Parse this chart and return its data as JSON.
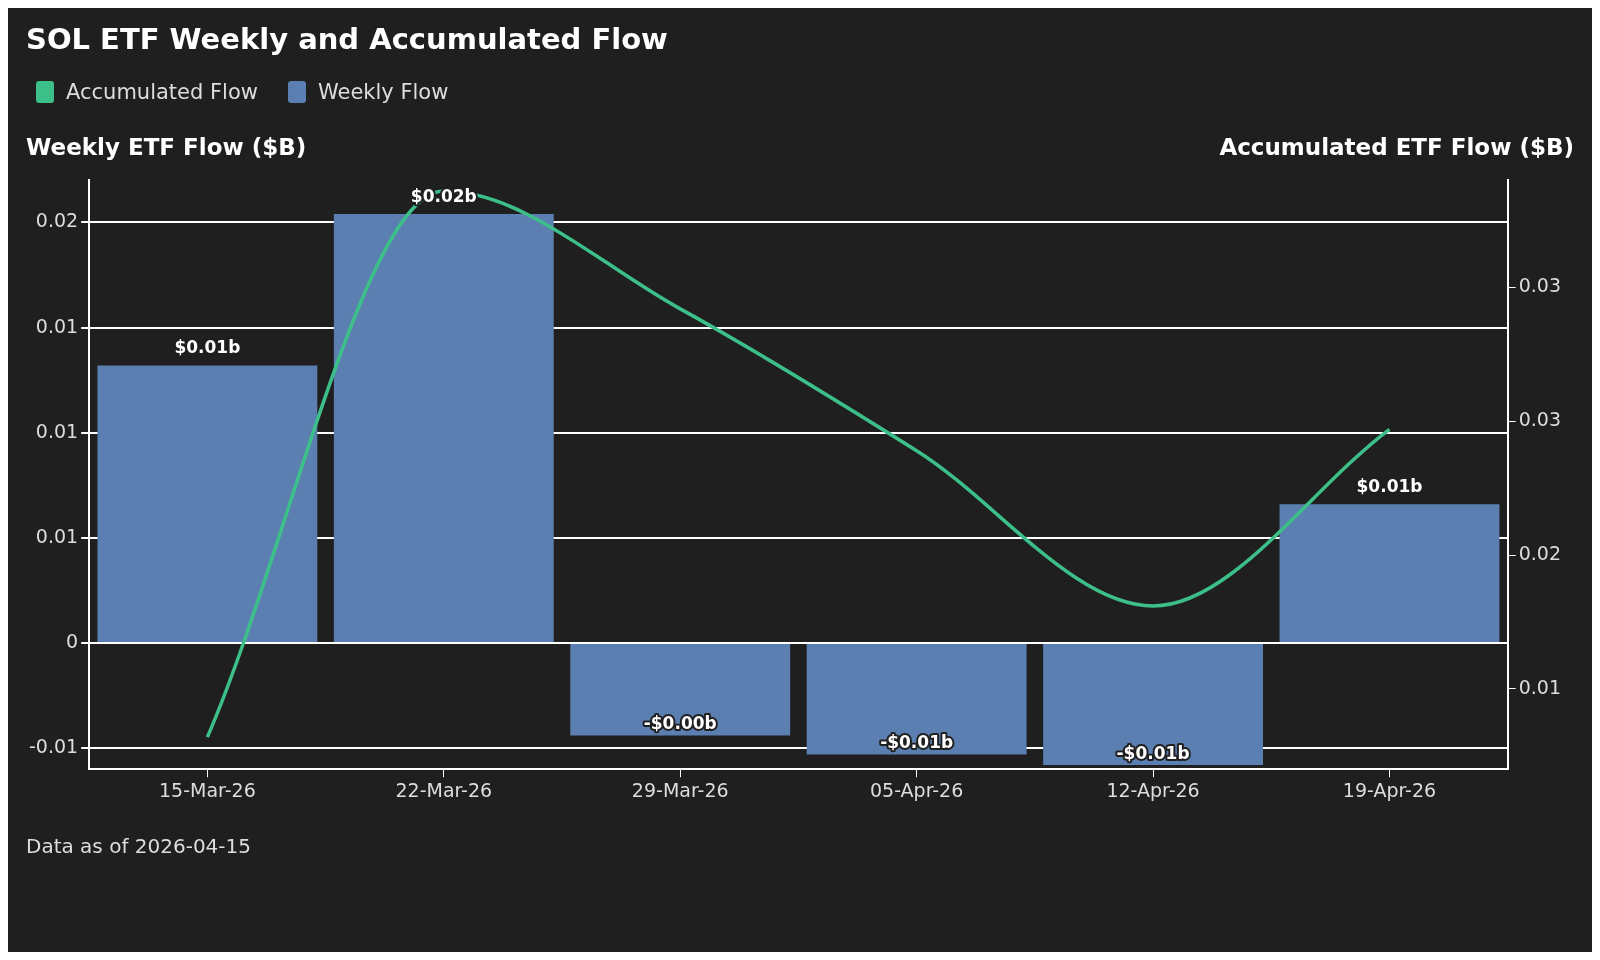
{
  "chart_data": {
    "type": "bar",
    "title": "SOL ETF Weekly and Accumulated Flow",
    "ylabel": "Weekly ETF Flow ($B)",
    "y2label": "Accumulated ETF Flow ($B)",
    "categories": [
      "15-Mar-26",
      "22-Mar-26",
      "29-Mar-26",
      "05-Apr-26",
      "12-Apr-26",
      "19-Apr-26"
    ],
    "series": [
      {
        "name": "Accumulated Flow",
        "type": "line",
        "axis": "y2",
        "color": "#3dbf8a",
        "values": [
          0.0132,
          0.0336,
          0.0292,
          0.0239,
          0.0181,
          0.0247
        ]
      },
      {
        "name": "Weekly Flow",
        "color": "#5b7fb0",
        "values": [
          0.0132,
          0.0204,
          -0.0044,
          -0.0053,
          -0.0058,
          0.0066
        ],
        "value_labels": [
          "$0.01b",
          "$0.02b",
          "-$0.00b",
          "-$0.01b",
          "-$0.01b",
          "$0.01b"
        ]
      }
    ],
    "ylim": [
      -0.006,
      0.022
    ],
    "yticks": [
      {
        "value": -0.005,
        "label": "-0.01"
      },
      0,
      {
        "value": 0.005,
        "label": "0.01"
      },
      {
        "value": 0.01,
        "label": "0.01"
      },
      {
        "value": 0.015,
        "label": "0.01"
      },
      {
        "value": 0.02,
        "label": "0.02"
      }
    ],
    "y2lim": [
      0.012,
      0.034
    ],
    "y2ticks": [
      {
        "value": 0.015,
        "label": "0.01"
      },
      {
        "value": 0.02,
        "label": "0.02"
      },
      {
        "value": 0.025,
        "label": "0.03"
      },
      {
        "value": 0.03,
        "label": "0.03"
      }
    ],
    "grid": "y",
    "legend": "top left",
    "marker": "none",
    "line_style": "solid",
    "annotations": [
      "Data as of 2026-04-15"
    ]
  }
}
